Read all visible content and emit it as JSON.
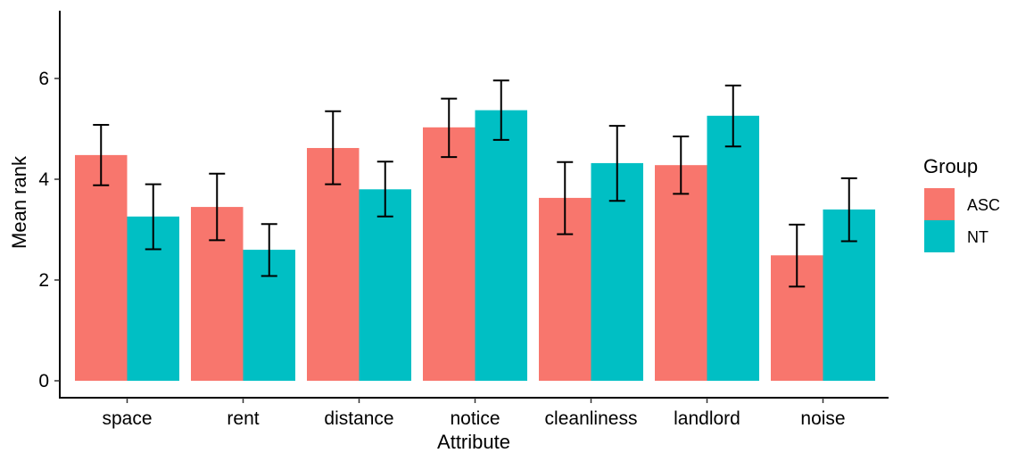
{
  "chart_data": {
    "type": "bar",
    "xlabel": "Attribute",
    "ylabel": "Mean rank",
    "ylim": [
      0,
      7.2
    ],
    "yticks": [
      0,
      2,
      4,
      6
    ],
    "categories": [
      "space",
      "rent",
      "distance",
      "notice",
      "cleanliness",
      "landlord",
      "noise"
    ],
    "series": [
      {
        "name": "ASC",
        "color": "#F8766D",
        "values": [
          4.48,
          3.45,
          4.62,
          5.03,
          3.63,
          4.28,
          2.49
        ],
        "err_low": [
          3.88,
          2.79,
          3.9,
          4.44,
          2.91,
          3.71,
          1.87
        ],
        "err_high": [
          5.08,
          4.11,
          5.35,
          5.6,
          4.34,
          4.85,
          3.1
        ]
      },
      {
        "name": "NT",
        "color": "#00BFC4",
        "values": [
          3.26,
          2.6,
          3.8,
          5.37,
          4.32,
          5.26,
          3.4
        ],
        "err_low": [
          2.61,
          2.08,
          3.26,
          4.78,
          3.57,
          4.65,
          2.77
        ],
        "err_high": [
          3.9,
          3.11,
          4.35,
          5.96,
          5.06,
          5.86,
          4.02
        ]
      }
    ],
    "legend": {
      "title": "Group",
      "position": "right"
    },
    "grid": false
  }
}
